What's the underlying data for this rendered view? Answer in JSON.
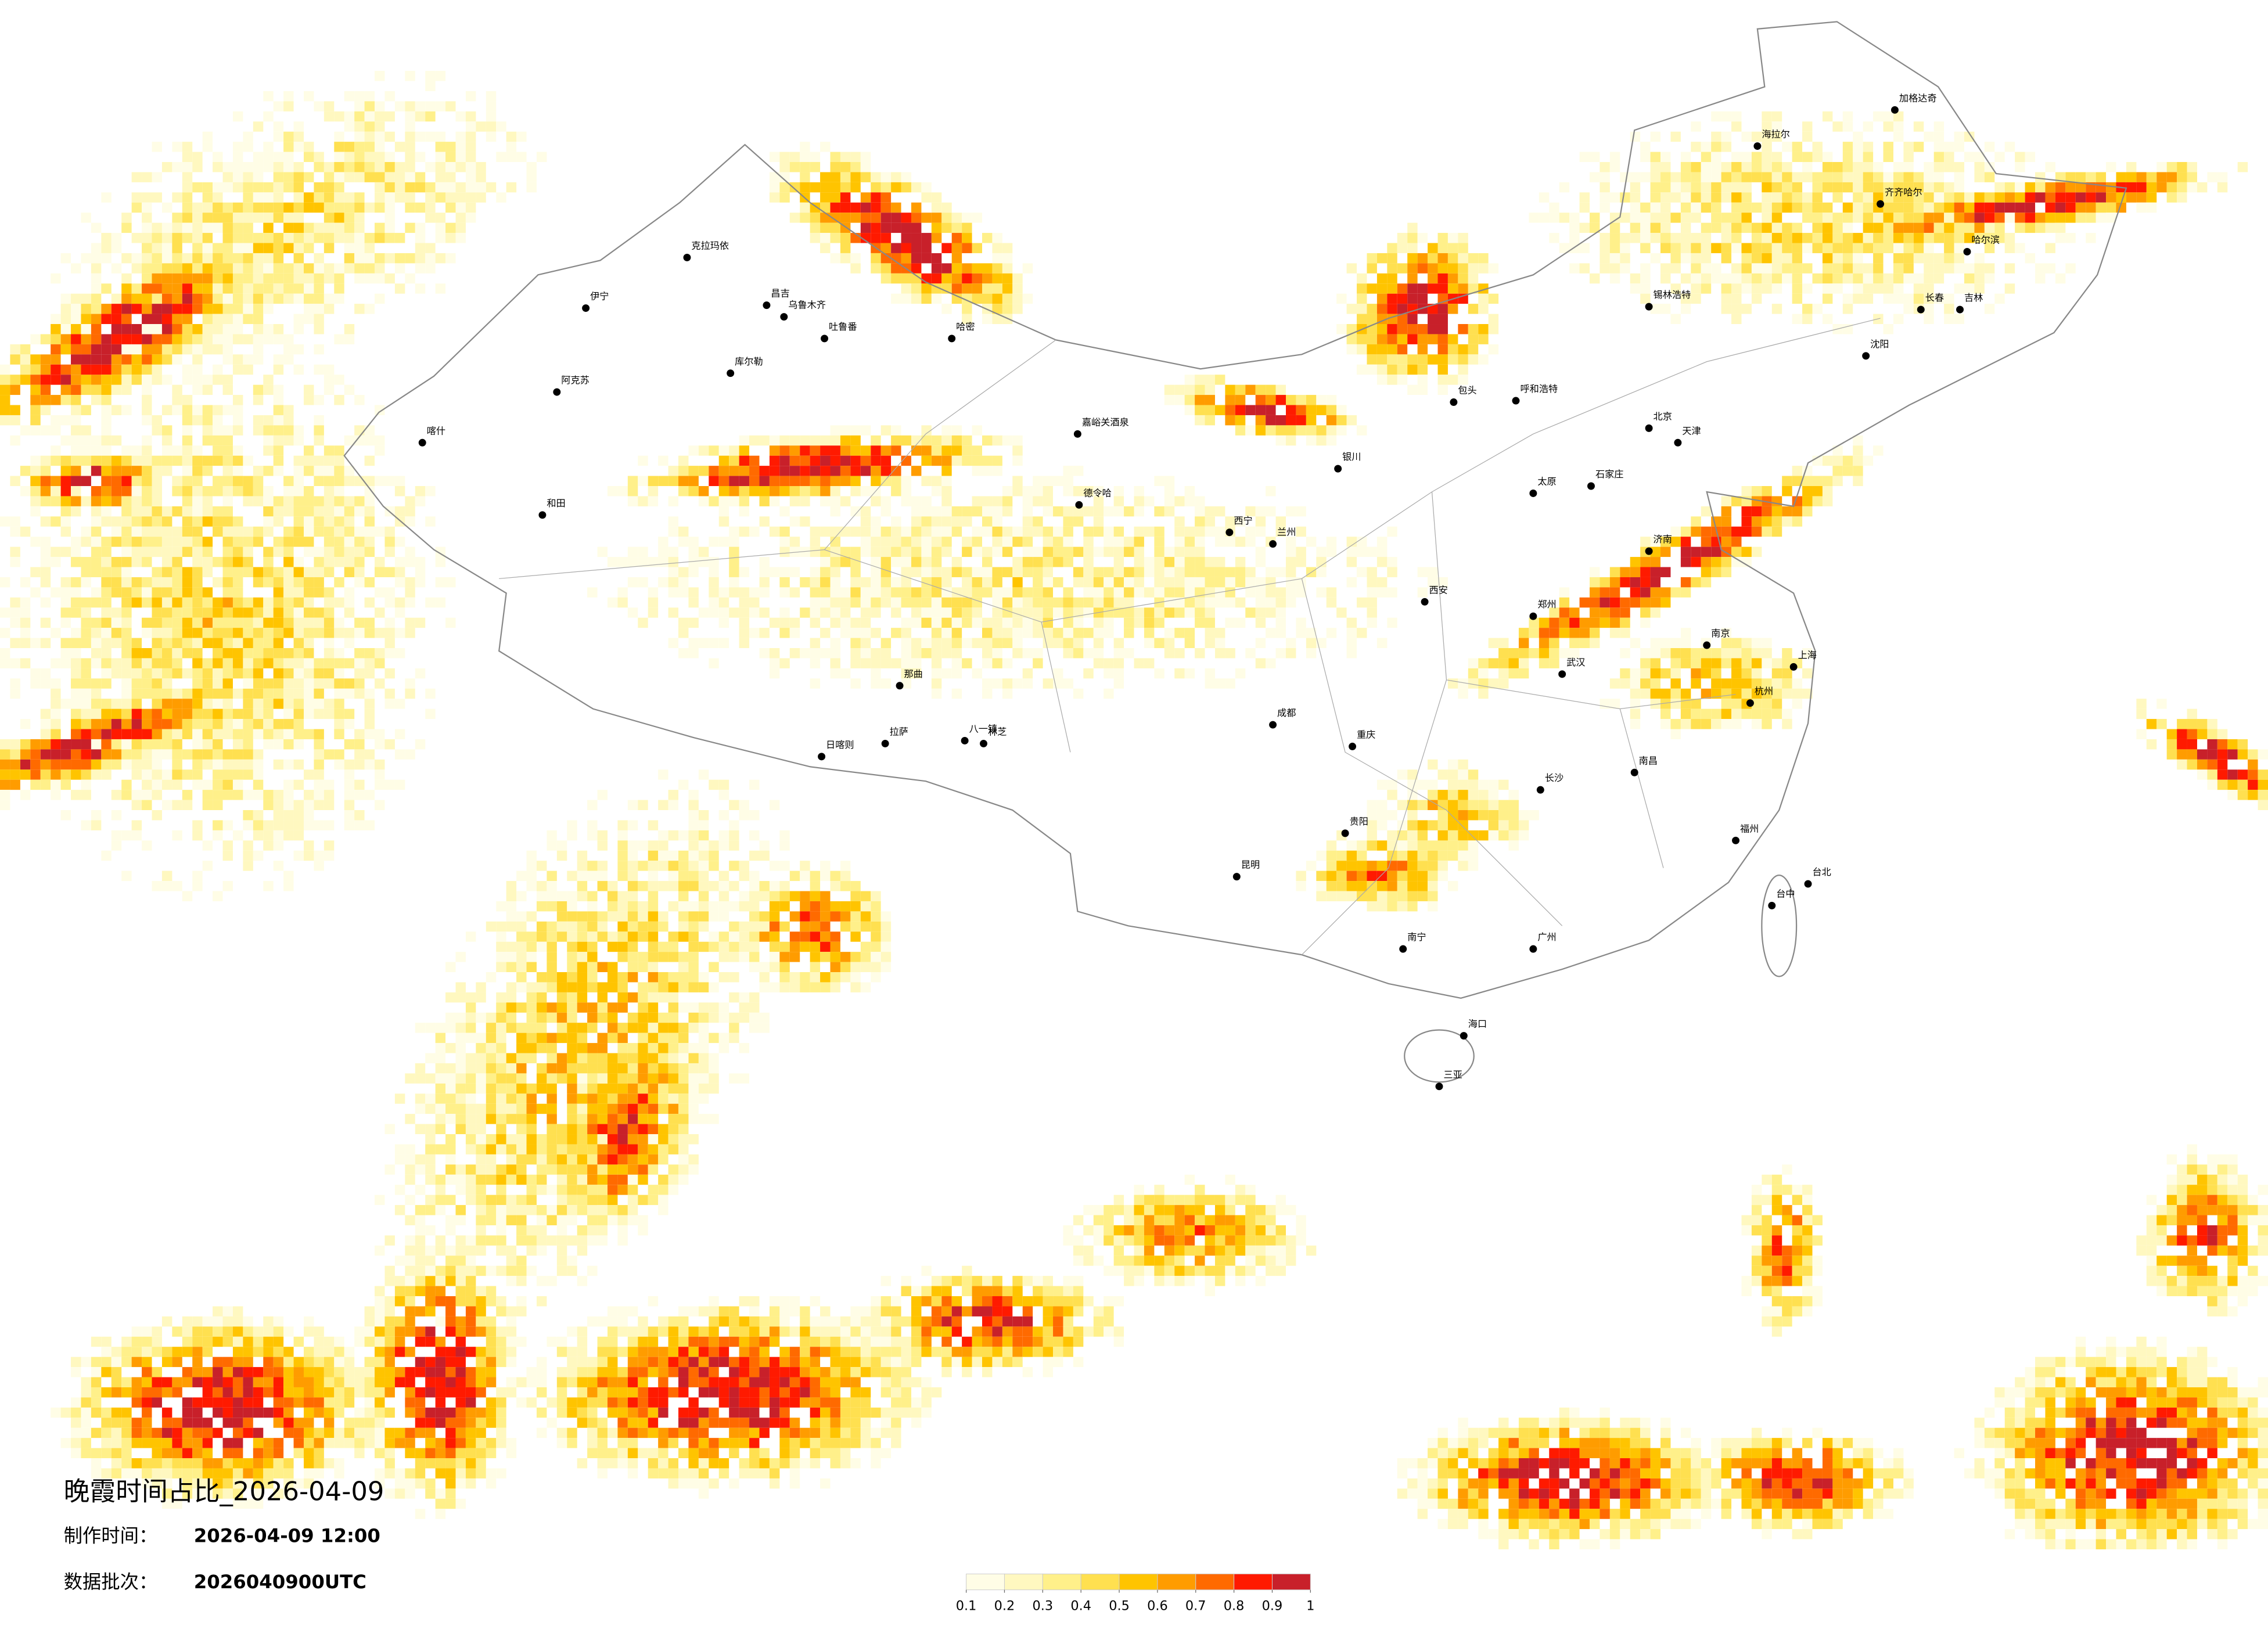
{
  "title": "晚霞时间占比_2026-04-09",
  "made_time_label": "制作时间：",
  "made_time": "2026-04-09 12:00",
  "batch_label": "数据批次：",
  "batch": "2026040900UTC",
  "legend": {
    "colors": [
      "#fffde6",
      "#fff8c0",
      "#fff08a",
      "#ffe050",
      "#ffc400",
      "#ff9c00",
      "#ff6a00",
      "#ff1a00",
      "#c8202a"
    ],
    "ticks": [
      0.1,
      0.2,
      0.3,
      0.4,
      0.5,
      0.6,
      0.7,
      0.8,
      0.9,
      1
    ]
  },
  "cities": [
    "克拉玛依",
    "伊宁",
    "阿克苏",
    "喀什",
    "和田",
    "库尔勒",
    "哈密",
    "昌吉",
    "乌鲁木齐",
    "吐鲁番",
    "德令哈",
    "嘉峪关酒泉",
    "日喀则",
    "拉萨",
    "八一镇",
    "林芝",
    "那曲",
    "海拉尔",
    "加格达奇",
    "齐齐哈尔",
    "哈尔滨",
    "长春",
    "吉林",
    "沈阳",
    "锡林浩特",
    "呼和浩特",
    "包头",
    "北京",
    "天津",
    "石家庄",
    "太原",
    "西安",
    "兰州",
    "西宁",
    "银川",
    "成都",
    "重庆",
    "贵阳",
    "昆明",
    "南宁",
    "广州",
    "武汉",
    "长沙",
    "南昌",
    "福州",
    "杭州",
    "上海",
    "南京",
    "济南",
    "郑州",
    "台北",
    "台中",
    "海口",
    "三亚"
  ]
}
